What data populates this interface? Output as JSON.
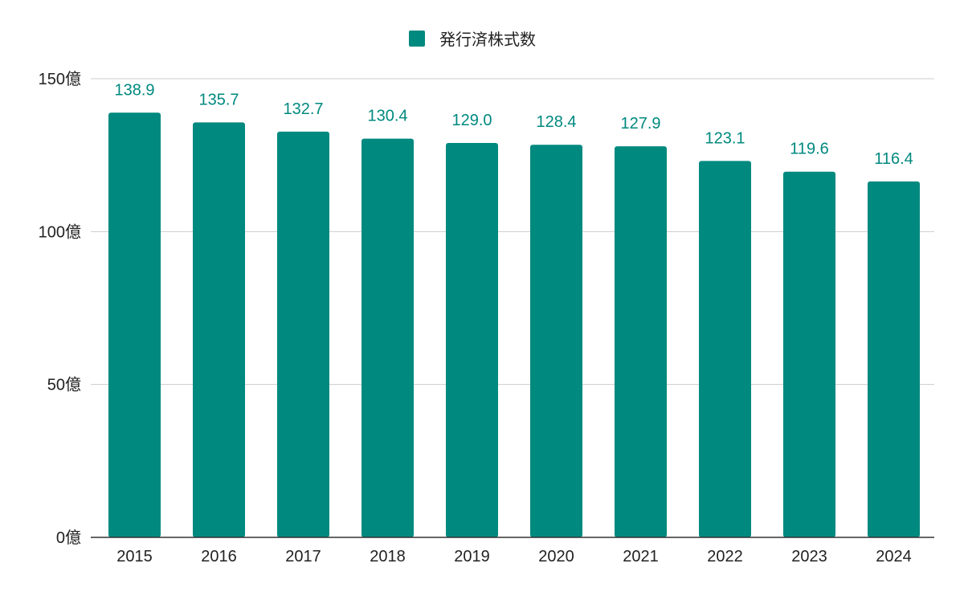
{
  "chart_data": {
    "type": "bar",
    "categories": [
      "2015",
      "2016",
      "2017",
      "2018",
      "2019",
      "2020",
      "2021",
      "2022",
      "2023",
      "2024"
    ],
    "series": [
      {
        "name": "発行済株式数",
        "values": [
          138.9,
          135.7,
          132.7,
          130.4,
          129.0,
          128.4,
          127.9,
          123.1,
          119.6,
          116.4
        ],
        "labels": [
          "138.9",
          "135.7",
          "132.7",
          "130.4",
          "129.0",
          "128.4",
          "127.9",
          "123.1",
          "119.6",
          "116.4"
        ]
      }
    ],
    "unit": "億",
    "ylim": [
      0,
      150
    ],
    "yticks": [
      0,
      50,
      100,
      150
    ],
    "ytick_labels": [
      "0億",
      "50億",
      "100億",
      "150億"
    ],
    "grid": true,
    "legend_position": "top-center",
    "colors": {
      "bar": "#00897f",
      "data_label": "#00897f",
      "grid": "#cccccc",
      "axis": "#333333"
    }
  }
}
